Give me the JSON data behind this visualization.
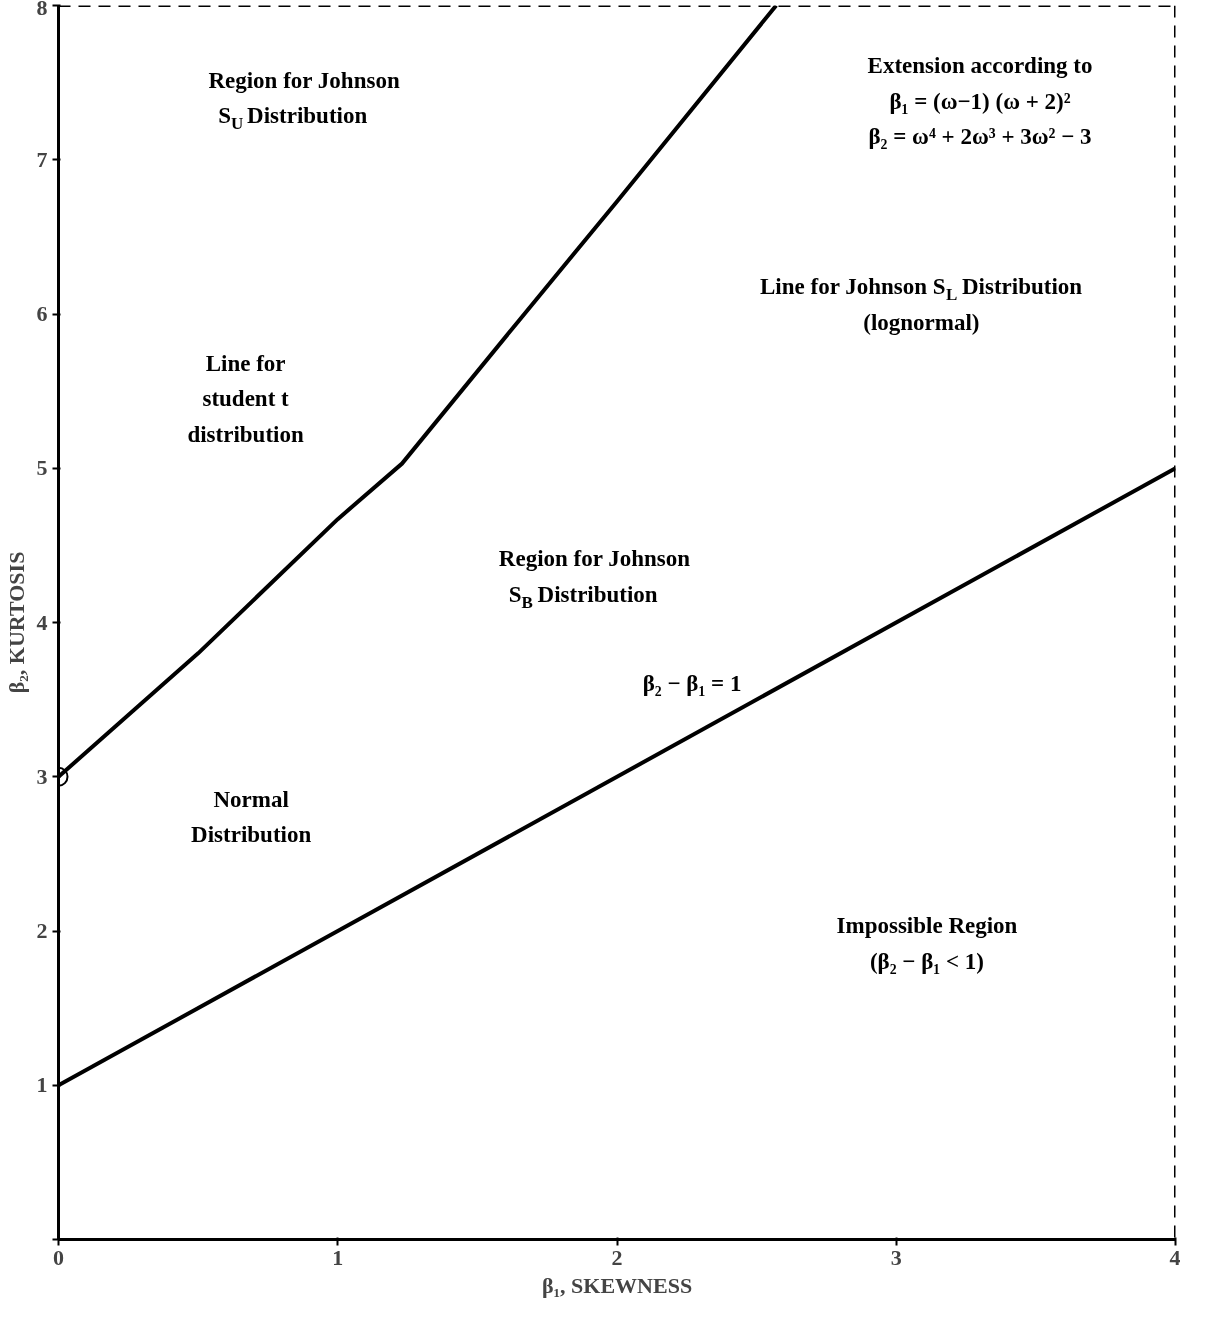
{
  "chart_data": {
    "type": "line",
    "xlabel": "β₁, SKEWNESS",
    "ylabel": "β₂, KURTOSIS",
    "xlim": [
      0,
      4
    ],
    "ylim": [
      0,
      8
    ],
    "xticks": [
      0,
      1,
      2,
      3,
      4
    ],
    "yticks": [
      {
        "value": 0,
        "label": null
      },
      1,
      2,
      3,
      4,
      5,
      6,
      7,
      8
    ],
    "grid": false,
    "line_style": "solid",
    "marker": "none",
    "series": [
      {
        "color": "#000000",
        "x": [
          0,
          0.5,
          1,
          1.23,
          1.65,
          2,
          2.57
        ],
        "values": [
          3,
          3.8,
          4.67,
          5.03,
          5.96,
          6.73,
          8
        ]
      },
      {
        "color": "#000000",
        "x": [
          0,
          4
        ],
        "values": [
          1,
          5
        ]
      },
      {
        "type": "scatter",
        "marker": "circle",
        "color": "#000000",
        "x": [
          0
        ],
        "values": [
          3
        ]
      }
    ],
    "ref_lines": [
      {
        "axis": "y",
        "value": 8,
        "label": null,
        "color": "#000000",
        "line_style": "dashed"
      },
      {
        "axis": "x",
        "value": 4,
        "label": null,
        "color": "#000000",
        "line_style": "dashed"
      }
    ],
    "annotations": [
      "Region for Johnson\nS$_{U}$ Distribution",
      "Extension according to\nβ₁ = (ω−1) (ω + 2)²\nβ₂ = ω⁴ + 2ω³ + 3ω² − 3",
      "Line for Johnson S$_{L}$ Distribution\n(lognormal)",
      "Line for\nstudent t\ndistribution",
      "Region for Johnson\nS$_{B}$ Distribution",
      {
        "text": "β₂ − β₁ = 1",
        "x": 2.46,
        "y": 3.46
      },
      "Normal\nDistribution",
      "Impossible Region\n(β₂ − β₁ < 1)"
    ]
  }
}
